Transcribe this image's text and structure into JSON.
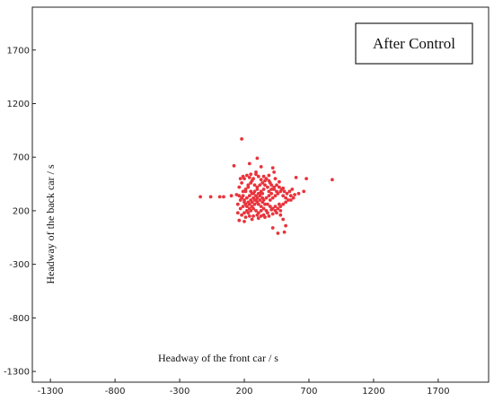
{
  "chart_data": {
    "type": "scatter",
    "title": "",
    "annotation": "After Control",
    "xlabel": "Headway of the front car / s",
    "ylabel": "Headway of the back car / s",
    "x_ticks": [
      -1300,
      -800,
      -300,
      200,
      700,
      1200,
      1700
    ],
    "y_ticks": [
      1700,
      1200,
      700,
      200,
      -300,
      -800,
      -1300
    ],
    "xlim": [
      -1440,
      2090
    ],
    "ylim": [
      -1400,
      2100
    ],
    "grid": false,
    "marker_color": "#e8343c",
    "series": [
      {
        "points": [
          [
            180,
            870
          ],
          [
            240,
            640
          ],
          [
            300,
            690
          ],
          [
            330,
            610
          ],
          [
            120,
            620
          ],
          [
            420,
            600
          ],
          [
            430,
            560
          ],
          [
            600,
            510
          ],
          [
            680,
            500
          ],
          [
            880,
            490
          ],
          [
            -140,
            330
          ],
          [
            -60,
            330
          ],
          [
            10,
            330
          ],
          [
            40,
            330
          ],
          [
            100,
            340
          ],
          [
            140,
            350
          ],
          [
            560,
            340
          ],
          [
            590,
            350
          ],
          [
            620,
            360
          ],
          [
            660,
            380
          ],
          [
            480,
            160
          ],
          [
            500,
            120
          ],
          [
            520,
            60
          ],
          [
            510,
            0
          ],
          [
            460,
            -10
          ],
          [
            420,
            40
          ],
          [
            500,
            410
          ],
          [
            470,
            470
          ],
          [
            440,
            500
          ],
          [
            390,
            530
          ],
          [
            150,
            180
          ],
          [
            160,
            110
          ],
          [
            200,
            100
          ],
          [
            260,
            120
          ],
          [
            310,
            130
          ],
          [
            350,
            160
          ],
          [
            380,
            180
          ],
          [
            410,
            210
          ],
          [
            440,
            240
          ],
          [
            470,
            260
          ],
          [
            150,
            260
          ],
          [
            170,
            300
          ],
          [
            190,
            340
          ],
          [
            210,
            380
          ],
          [
            230,
            420
          ],
          [
            250,
            460
          ],
          [
            270,
            500
          ],
          [
            290,
            540
          ],
          [
            310,
            520
          ],
          [
            330,
            490
          ],
          [
            160,
            420
          ],
          [
            180,
            460
          ],
          [
            200,
            500
          ],
          [
            220,
            530
          ],
          [
            240,
            510
          ],
          [
            260,
            480
          ],
          [
            280,
            440
          ],
          [
            300,
            400
          ],
          [
            320,
            360
          ],
          [
            340,
            320
          ],
          [
            170,
            220
          ],
          [
            190,
            240
          ],
          [
            210,
            260
          ],
          [
            230,
            280
          ],
          [
            250,
            300
          ],
          [
            270,
            320
          ],
          [
            290,
            340
          ],
          [
            310,
            360
          ],
          [
            330,
            380
          ],
          [
            350,
            400
          ],
          [
            180,
            160
          ],
          [
            200,
            180
          ],
          [
            220,
            200
          ],
          [
            240,
            220
          ],
          [
            260,
            240
          ],
          [
            280,
            260
          ],
          [
            300,
            280
          ],
          [
            320,
            300
          ],
          [
            340,
            280
          ],
          [
            360,
            260
          ],
          [
            200,
            300
          ],
          [
            220,
            320
          ],
          [
            240,
            340
          ],
          [
            260,
            360
          ],
          [
            280,
            380
          ],
          [
            300,
            420
          ],
          [
            320,
            440
          ],
          [
            340,
            460
          ],
          [
            360,
            440
          ],
          [
            380,
            420
          ],
          [
            190,
            380
          ],
          [
            210,
            400
          ],
          [
            230,
            440
          ],
          [
            250,
            380
          ],
          [
            270,
            360
          ],
          [
            290,
            300
          ],
          [
            310,
            260
          ],
          [
            330,
            240
          ],
          [
            350,
            220
          ],
          [
            370,
            200
          ],
          [
            400,
            300
          ],
          [
            420,
            320
          ],
          [
            440,
            340
          ],
          [
            460,
            360
          ],
          [
            480,
            380
          ],
          [
            500,
            340
          ],
          [
            520,
            320
          ],
          [
            540,
            300
          ],
          [
            560,
            300
          ],
          [
            580,
            320
          ],
          [
            390,
            380
          ],
          [
            410,
            400
          ],
          [
            430,
            420
          ],
          [
            450,
            440
          ],
          [
            470,
            420
          ],
          [
            490,
            400
          ],
          [
            510,
            380
          ],
          [
            530,
            360
          ],
          [
            550,
            380
          ],
          [
            570,
            400
          ],
          [
            380,
            260
          ],
          [
            400,
            240
          ],
          [
            420,
            220
          ],
          [
            440,
            200
          ],
          [
            460,
            220
          ],
          [
            480,
            240
          ],
          [
            500,
            260
          ],
          [
            520,
            280
          ],
          [
            400,
            460
          ],
          [
            360,
            480
          ],
          [
            230,
            180
          ],
          [
            250,
            200
          ],
          [
            270,
            220
          ],
          [
            290,
            200
          ],
          [
            310,
            180
          ],
          [
            330,
            200
          ],
          [
            350,
            300
          ],
          [
            370,
            320
          ],
          [
            390,
            340
          ],
          [
            410,
            360
          ],
          [
            160,
            340
          ],
          [
            180,
            320
          ],
          [
            200,
            280
          ],
          [
            220,
            240
          ],
          [
            240,
            260
          ],
          [
            260,
            280
          ],
          [
            280,
            300
          ],
          [
            300,
            320
          ],
          [
            320,
            340
          ],
          [
            340,
            360
          ],
          [
            170,
            500
          ],
          [
            190,
            520
          ],
          [
            350,
            520
          ],
          [
            370,
            500
          ],
          [
            390,
            480
          ],
          [
            410,
            440
          ],
          [
            430,
            400
          ],
          [
            450,
            380
          ],
          [
            250,
            540
          ],
          [
            290,
            560
          ],
          [
            210,
            140
          ],
          [
            240,
            150
          ],
          [
            270,
            150
          ],
          [
            300,
            160
          ],
          [
            330,
            150
          ],
          [
            360,
            140
          ],
          [
            390,
            150
          ],
          [
            420,
            170
          ],
          [
            450,
            180
          ],
          [
            480,
            200
          ]
        ]
      }
    ]
  }
}
